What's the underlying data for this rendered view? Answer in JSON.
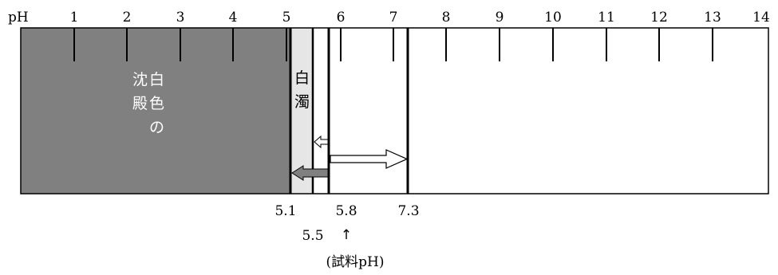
{
  "scale": {
    "axis_label": "pH",
    "ticks": [
      "1",
      "2",
      "3",
      "4",
      "5",
      "6",
      "7",
      "8",
      "9",
      "10",
      "11",
      "12",
      "13",
      "14"
    ]
  },
  "regions": {
    "precipitate": {
      "label_lines": [
        "沈白",
        "殿色",
        "　の"
      ],
      "color": "#808080",
      "text_color": "#ffffff"
    },
    "turbidity": {
      "label_lines": [
        "白",
        "濁"
      ],
      "color": "#e6e6e6"
    }
  },
  "boundaries": {
    "b1": "5.1",
    "b2": "5.5",
    "b3": "5.8",
    "b4": "7.3"
  },
  "sample": {
    "arrow": "↑",
    "label": "(試料pH)"
  }
}
